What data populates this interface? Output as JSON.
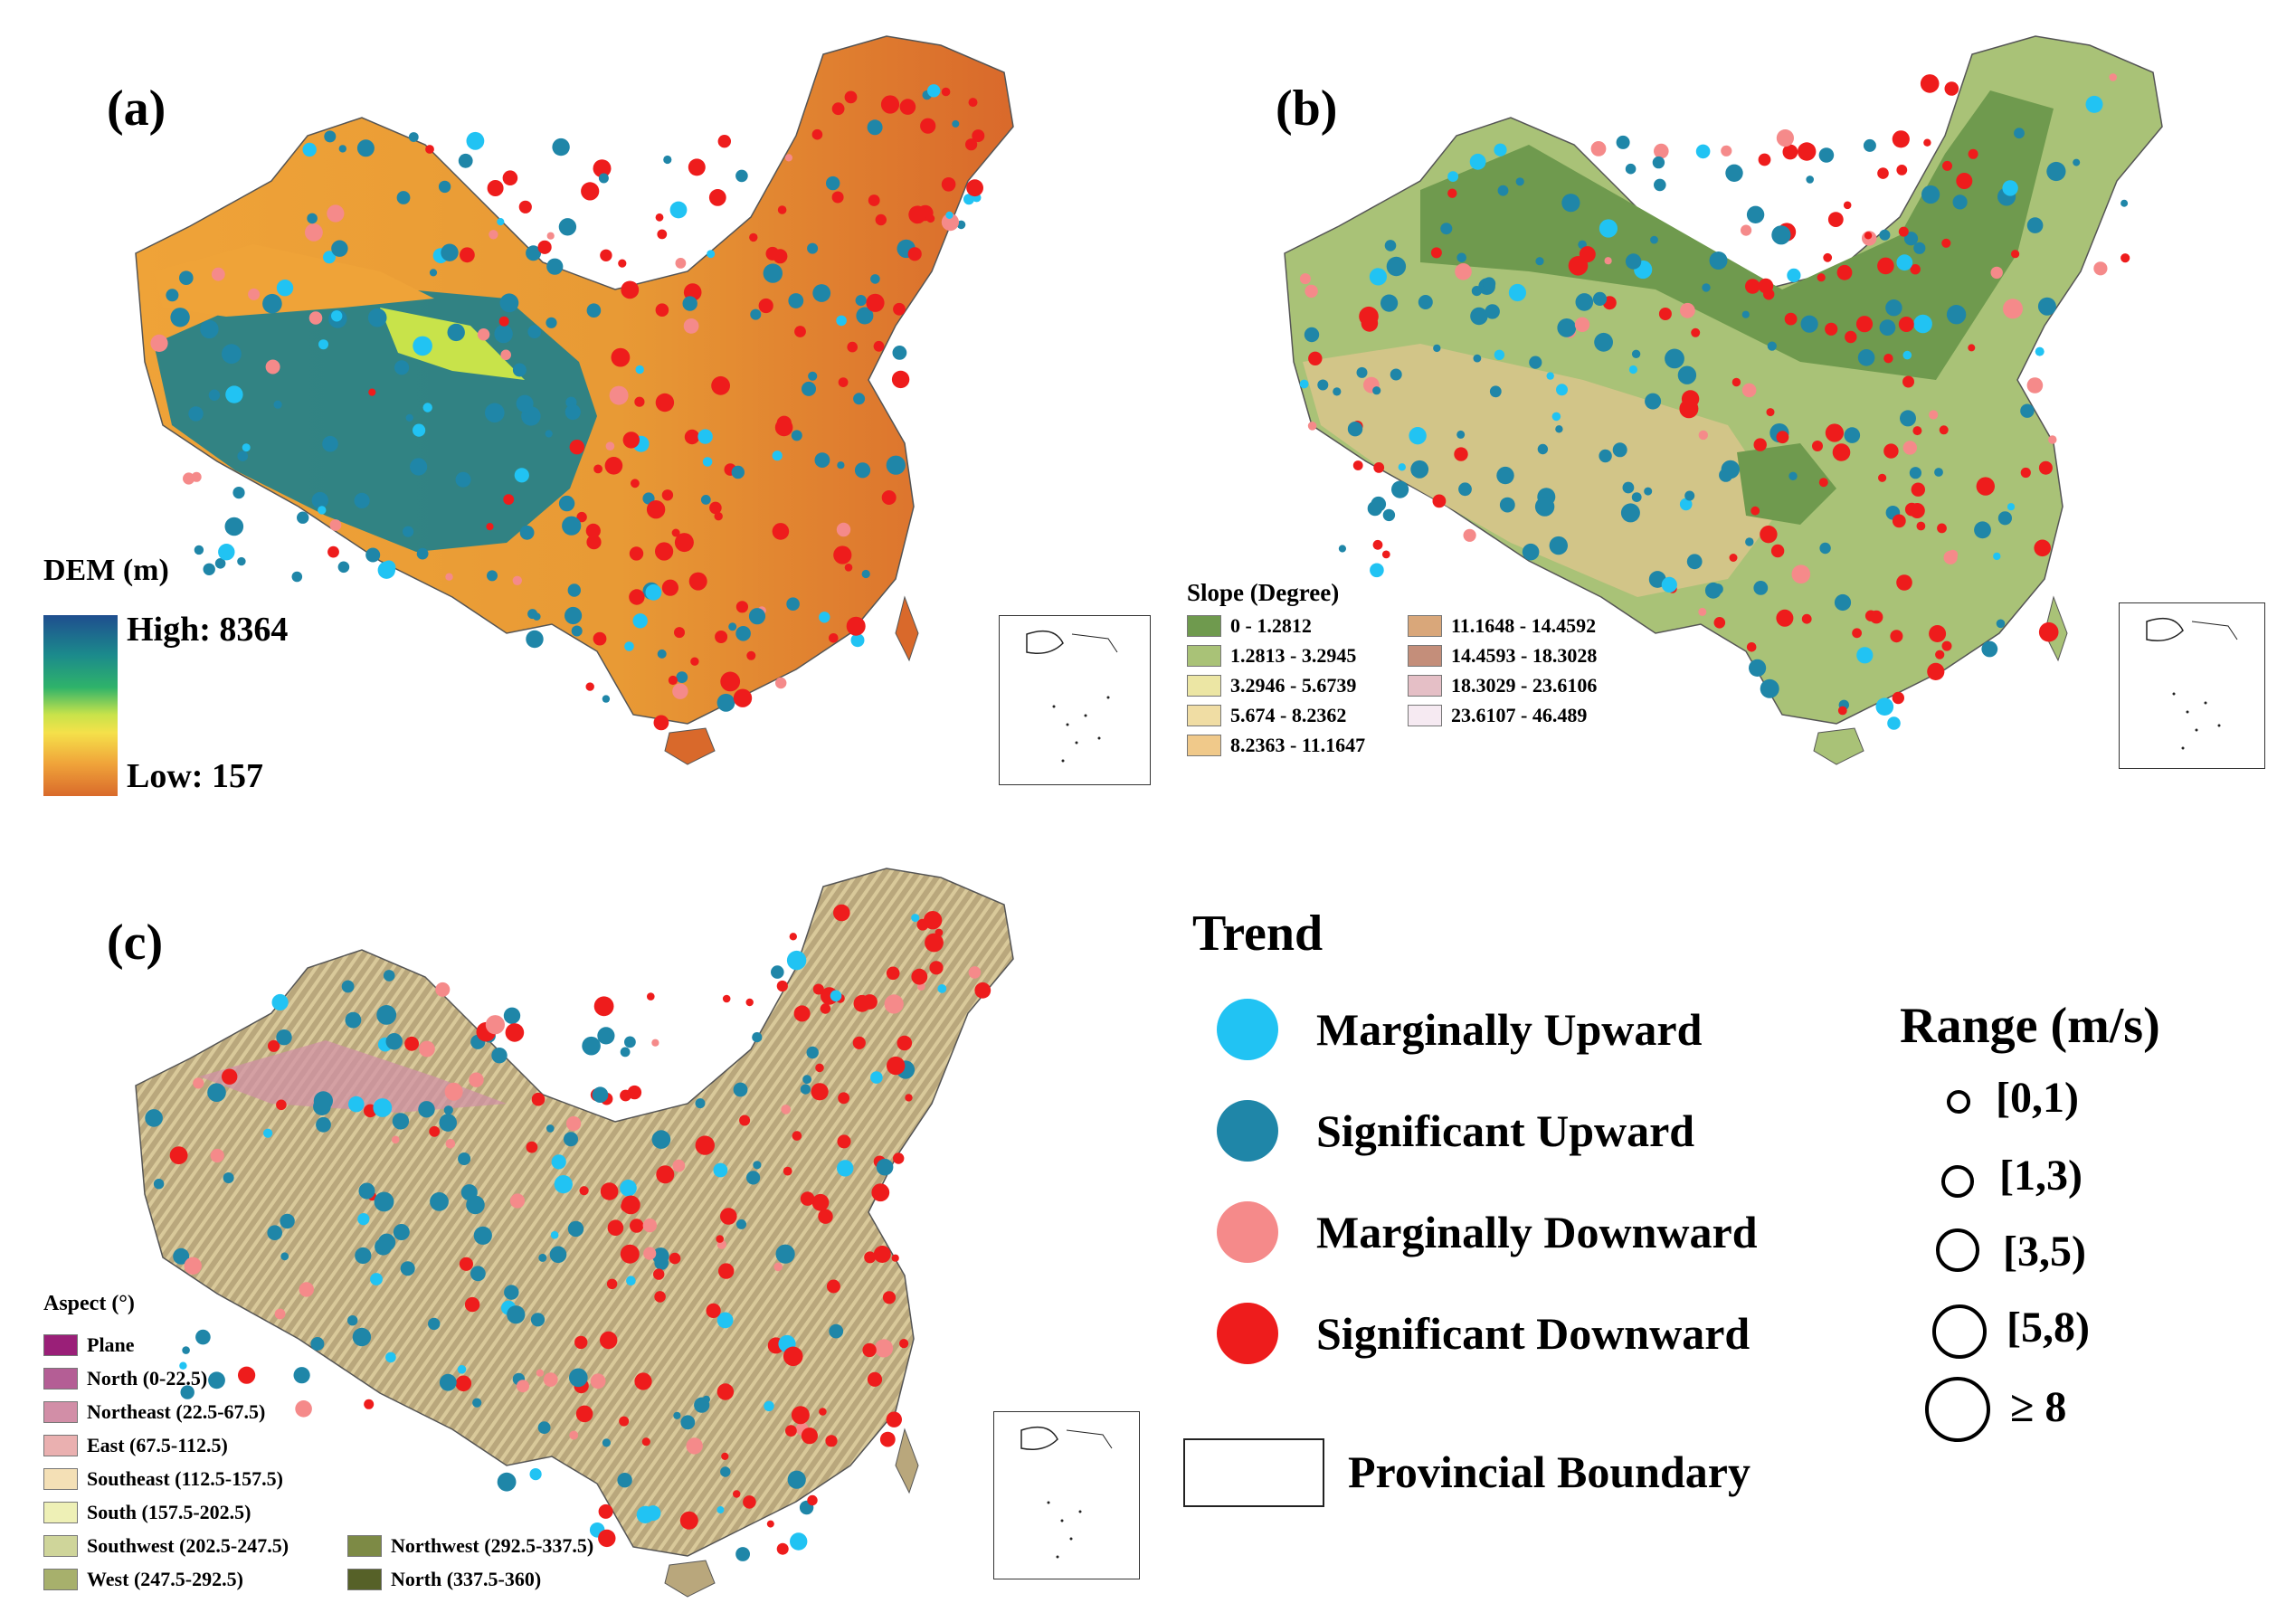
{
  "panels": {
    "a": {
      "label": "(a)"
    },
    "b": {
      "label": "(b)"
    },
    "c": {
      "label": "(c)"
    }
  },
  "dem_legend": {
    "title": "DEM (m)",
    "high": "High: 8364",
    "low": "Low: 157"
  },
  "slope_legend": {
    "title": "Slope (Degree)",
    "classes": [
      {
        "label": "0 - 1.2812",
        "color": "#6f9a4e"
      },
      {
        "label": "11.1648 - 14.4592",
        "color": "#d9a77a"
      },
      {
        "label": "1.2813 - 3.2945",
        "color": "#a9c277"
      },
      {
        "label": "14.4593 - 18.3028",
        "color": "#c48e7a"
      },
      {
        "label": "3.2946 - 5.6739",
        "color": "#ece6a4"
      },
      {
        "label": "18.3029 - 23.6106",
        "color": "#e5bfc6"
      },
      {
        "label": "5.674 - 8.2362",
        "color": "#f0dda4"
      },
      {
        "label": "23.6107 - 46.489",
        "color": "#f6eaf2"
      },
      {
        "label": "8.2363 - 11.1647",
        "color": "#f0c98a"
      }
    ]
  },
  "aspect_legend": {
    "title": "Aspect (°)",
    "classes_col1": [
      {
        "label": "Plane",
        "color": "#9a1f78"
      },
      {
        "label": "North (0-22.5)",
        "color": "#b45e95"
      },
      {
        "label": "Northeast (22.5-67.5)",
        "color": "#d28ea7"
      },
      {
        "label": "East (67.5-112.5)",
        "color": "#eab0b0"
      },
      {
        "label": "Southeast (112.5-157.5)",
        "color": "#f4e0b6"
      },
      {
        "label": "South (157.5-202.5)",
        "color": "#eef0b6"
      },
      {
        "label": "Southwest (202.5-247.5)",
        "color": "#cfd59a"
      },
      {
        "label": "West (247.5-292.5)",
        "color": "#a7b06c"
      }
    ],
    "classes_col2": [
      {
        "label": "Northwest (292.5-337.5)",
        "color": "#7d8a45"
      },
      {
        "label": "North (337.5-360)",
        "color": "#566128"
      }
    ]
  },
  "trend_legend": {
    "title": "Trend",
    "items": [
      {
        "label": "Marginally Upward",
        "color": "#21c3f3"
      },
      {
        "label": "Significant Upward",
        "color": "#1f86a8"
      },
      {
        "label": "Marginally Downward",
        "color": "#f58a8a"
      },
      {
        "label": "Significant Downward",
        "color": "#ee1c1c"
      }
    ]
  },
  "range_legend": {
    "title": "Range (m/s)",
    "items": [
      "[0,1)",
      "[1,3)",
      "[3,5)",
      "[5,8)",
      "≥ 8"
    ]
  },
  "boundary_legend": {
    "label": "Provincial Boundary"
  },
  "map_colors": {
    "dem_east": "#d9692b",
    "dem_mid": "#efa338",
    "dem_plateau": "#1d7f8c",
    "slope_base": "#6f9a4e",
    "slope_rough": "#d6c58a",
    "aspect_base": "#b9a77c"
  }
}
